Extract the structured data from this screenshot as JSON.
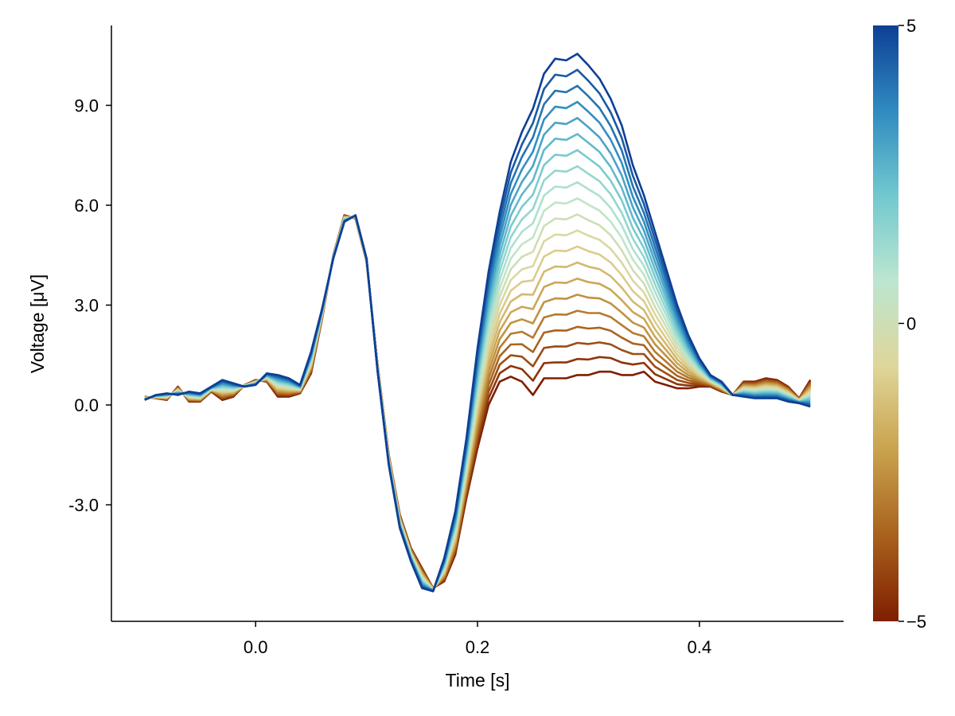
{
  "chart_data": {
    "type": "line",
    "xlabel": "Time [s]",
    "ylabel": "Voltage [μV]",
    "xlim": [
      -0.13,
      0.53
    ],
    "ylim": [
      -6.5,
      11.4
    ],
    "x_ticks": [
      0.0,
      0.2,
      0.4
    ],
    "x_tick_labels": [
      "0.0",
      "0.2",
      "0.4"
    ],
    "y_ticks": [
      -3.0,
      0.0,
      3.0,
      6.0,
      9.0
    ],
    "y_tick_labels": [
      "-3.0",
      "0.0",
      "3.0",
      "6.0",
      "9.0"
    ],
    "grid": false,
    "colorbar": {
      "min": -5,
      "max": 5,
      "ticks": [
        -5,
        0,
        5
      ],
      "tick_labels": [
        "−5",
        "0",
        "5"
      ],
      "colors": [
        "#7f1e00",
        "#a8611c",
        "#c9a24d",
        "#dfd69a",
        "#bce6d0",
        "#72c8cf",
        "#2f8bc0",
        "#0e3f95"
      ]
    },
    "x": [
      -0.1,
      -0.09,
      -0.08,
      -0.07,
      -0.06,
      -0.05,
      -0.04,
      -0.03,
      -0.02,
      -0.01,
      0.0,
      0.01,
      0.02,
      0.03,
      0.04,
      0.05,
      0.06,
      0.07,
      0.08,
      0.09,
      0.1,
      0.11,
      0.12,
      0.13,
      0.14,
      0.15,
      0.16,
      0.17,
      0.18,
      0.19,
      0.2,
      0.21,
      0.22,
      0.23,
      0.24,
      0.25,
      0.26,
      0.27,
      0.28,
      0.29,
      0.3,
      0.31,
      0.32,
      0.33,
      0.34,
      0.35,
      0.36,
      0.37,
      0.38,
      0.39,
      0.4,
      0.41,
      0.42,
      0.43,
      0.44,
      0.45,
      0.46,
      0.47,
      0.48,
      0.49,
      0.5
    ],
    "series_low": [
      0.25,
      0.2,
      0.15,
      0.55,
      0.1,
      0.1,
      0.4,
      0.15,
      0.25,
      0.6,
      0.75,
      0.7,
      0.25,
      0.25,
      0.35,
      0.95,
      2.6,
      4.5,
      5.7,
      5.6,
      4.3,
      1.2,
      -1.5,
      -3.3,
      -4.3,
      -4.9,
      -5.5,
      -5.3,
      -4.5,
      -2.8,
      -1.3,
      0.0,
      0.7,
      0.85,
      0.7,
      0.3,
      0.8,
      0.8,
      0.8,
      0.9,
      0.9,
      1.0,
      1.0,
      0.9,
      0.9,
      1.0,
      0.7,
      0.6,
      0.5,
      0.5,
      0.55,
      0.55,
      0.4,
      0.3,
      0.7,
      0.7,
      0.8,
      0.75,
      0.55,
      0.2,
      0.75
    ],
    "series_high": [
      0.15,
      0.3,
      0.35,
      0.3,
      0.4,
      0.35,
      0.55,
      0.75,
      0.65,
      0.55,
      0.6,
      0.95,
      0.9,
      0.8,
      0.6,
      1.6,
      2.9,
      4.4,
      5.5,
      5.7,
      4.4,
      1.0,
      -1.8,
      -3.7,
      -4.7,
      -5.5,
      -5.6,
      -4.6,
      -3.2,
      -1.0,
      1.7,
      4.0,
      5.8,
      7.3,
      8.2,
      8.9,
      9.95,
      10.4,
      10.35,
      10.55,
      10.2,
      9.8,
      9.2,
      8.4,
      7.2,
      6.3,
      5.2,
      4.1,
      3.0,
      2.1,
      1.4,
      0.9,
      0.7,
      0.3,
      0.25,
      0.2,
      0.2,
      0.2,
      0.1,
      0.05,
      -0.05
    ]
  }
}
